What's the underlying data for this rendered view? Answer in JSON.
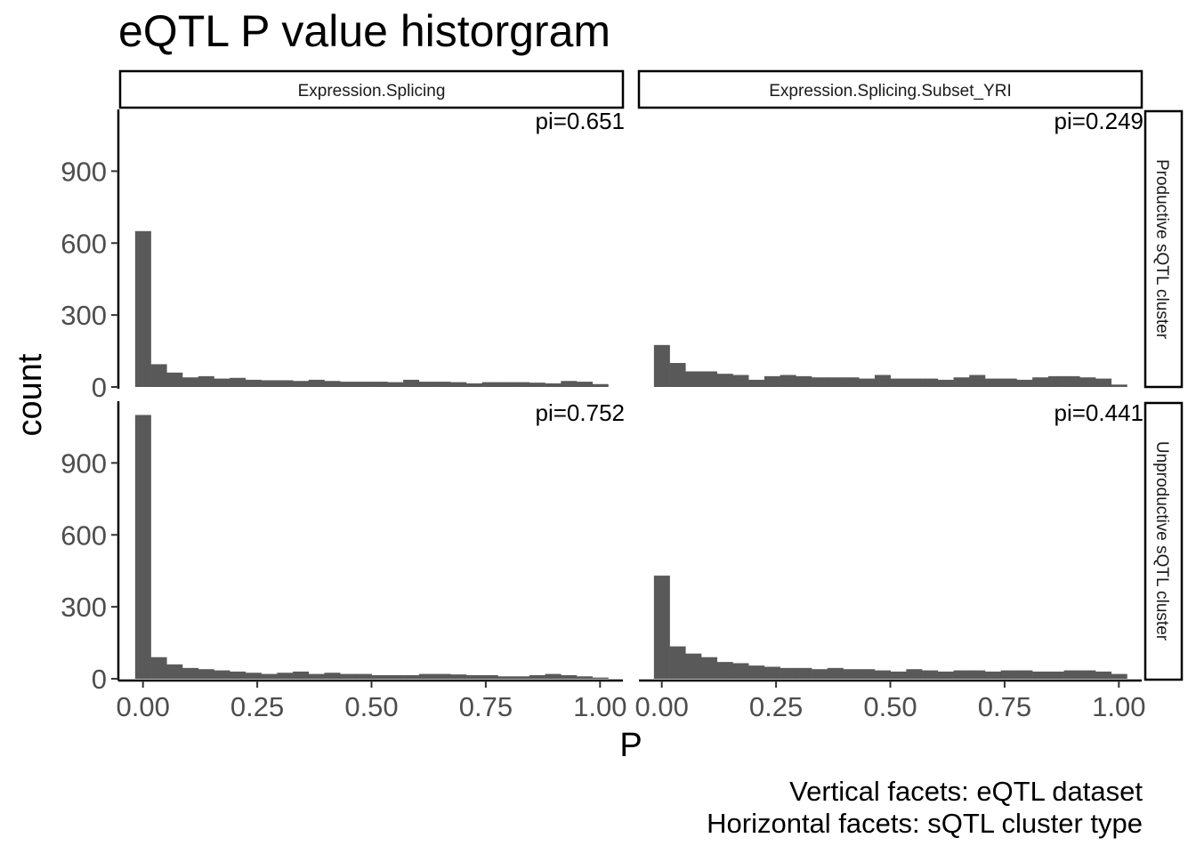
{
  "chart_data": {
    "type": "bar",
    "title": "eQTL P value historgram",
    "xlabel": "P",
    "ylabel": "count",
    "caption_lines": [
      "Vertical facets: eQTL dataset",
      "Horizontal facets: sQTL cluster type"
    ],
    "columns": [
      "Expression.Splicing",
      "Expression.Splicing.Subset_YRI"
    ],
    "rows": [
      "Productive sQTL cluster",
      "Unproductive sQTL cluster"
    ],
    "x_ticks": [
      "0.00",
      "0.25",
      "0.50",
      "0.75",
      "1.00"
    ],
    "x_tick_values": [
      0,
      0.25,
      0.5,
      0.75,
      1
    ],
    "y_ticks": [
      "0",
      "300",
      "600",
      "900"
    ],
    "y_tick_values": [
      0,
      300,
      600,
      900
    ],
    "xlim": [
      -0.05,
      1.05
    ],
    "ylim": [
      0,
      1150
    ],
    "bins": 30,
    "bin_start": -0.0172,
    "bin_width": 0.0345,
    "bar_color": "#595959",
    "panels": [
      {
        "row": 0,
        "col": 0,
        "pi_label": "pi=0.651",
        "counts": [
          650,
          95,
          60,
          40,
          45,
          35,
          38,
          30,
          28,
          28,
          25,
          30,
          25,
          22,
          22,
          22,
          20,
          30,
          22,
          22,
          20,
          15,
          20,
          20,
          20,
          18,
          15,
          25,
          22,
          12
        ]
      },
      {
        "row": 0,
        "col": 1,
        "pi_label": "pi=0.249",
        "counts": [
          175,
          100,
          65,
          65,
          55,
          50,
          30,
          45,
          50,
          45,
          40,
          40,
          40,
          35,
          50,
          35,
          35,
          35,
          30,
          40,
          50,
          35,
          35,
          30,
          40,
          45,
          45,
          40,
          35,
          10
        ]
      },
      {
        "row": 1,
        "col": 0,
        "pi_label": "pi=0.752",
        "counts": [
          1100,
          90,
          60,
          45,
          40,
          35,
          30,
          25,
          20,
          25,
          30,
          20,
          25,
          20,
          20,
          15,
          15,
          15,
          20,
          20,
          18,
          15,
          15,
          10,
          10,
          15,
          20,
          15,
          10,
          5
        ]
      },
      {
        "row": 1,
        "col": 1,
        "pi_label": "pi=0.441",
        "counts": [
          430,
          135,
          105,
          90,
          70,
          65,
          55,
          50,
          45,
          45,
          40,
          45,
          40,
          40,
          35,
          30,
          40,
          35,
          30,
          35,
          35,
          30,
          35,
          35,
          30,
          30,
          35,
          35,
          30,
          20
        ]
      }
    ]
  }
}
